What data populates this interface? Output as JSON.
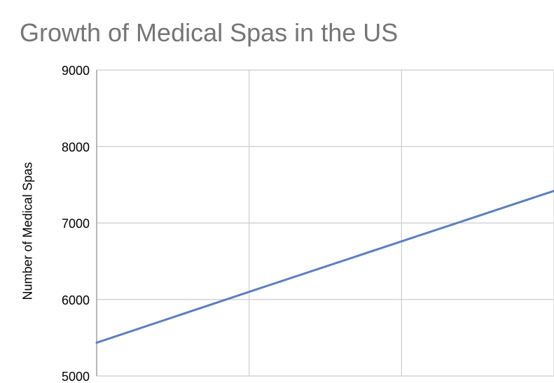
{
  "chart_data": {
    "type": "line",
    "title": "Growth of Medical Spas in the US",
    "xlabel": "",
    "ylabel": "Number of Medical Spas",
    "x": [
      0,
      1,
      2,
      3
    ],
    "xlim": [
      0,
      3
    ],
    "ylim": [
      5000,
      9000
    ],
    "yticks": [
      "9000",
      "8000",
      "7000",
      "6000",
      "5000"
    ],
    "series": [
      {
        "values": [
          5435,
          6100,
          6760,
          7420
        ],
        "color": "#5b7fbf"
      }
    ],
    "grid": true,
    "legend": "none"
  }
}
